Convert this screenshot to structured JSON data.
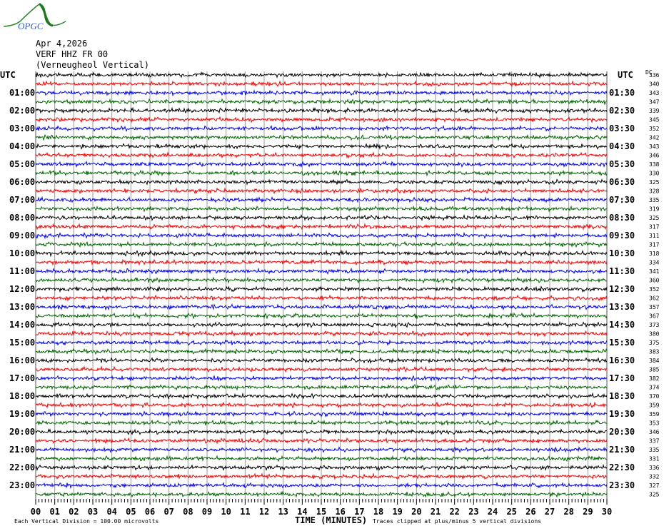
{
  "header": {
    "logo_text": "OPGC",
    "date": "Apr 4,2026",
    "station": "VERF HHZ FR 00",
    "station_name": "(Verneugheol Vertical)"
  },
  "chart_data": {
    "type": "line",
    "title": "",
    "left_axis_title": "UTC",
    "right_axis_title": "UTC",
    "dc_header": "DC",
    "left_labels": [
      "01:00",
      "02:00",
      "03:00",
      "04:00",
      "05:00",
      "06:00",
      "07:00",
      "08:00",
      "09:00",
      "10:00",
      "11:00",
      "12:00",
      "13:00",
      "14:00",
      "15:00",
      "16:00",
      "17:00",
      "18:00",
      "19:00",
      "20:00",
      "21:00",
      "22:00",
      "23:00"
    ],
    "right_labels": [
      "01:30",
      "02:30",
      "03:30",
      "04:30",
      "05:30",
      "06:30",
      "07:30",
      "08:30",
      "09:30",
      "10:30",
      "11:30",
      "12:30",
      "13:30",
      "14:30",
      "15:30",
      "16:30",
      "17:30",
      "18:30",
      "19:30",
      "20:30",
      "21:30",
      "22:30",
      "23:30"
    ],
    "dc_values": [
      "336",
      "340",
      "343",
      "347",
      "339",
      "345",
      "352",
      "342",
      "343",
      "346",
      "338",
      "330",
      "325",
      "328",
      "335",
      "319",
      "325",
      "317",
      "311",
      "317",
      "318",
      "334",
      "341",
      "360",
      "352",
      "362",
      "357",
      "367",
      "373",
      "380",
      "375",
      "383",
      "384",
      "385",
      "382",
      "374",
      "370",
      "359",
      "359",
      "353",
      "346",
      "337",
      "335",
      "331",
      "336",
      "332",
      "327",
      "325"
    ],
    "trace_count": 48,
    "minutes_per_trace": 30,
    "trace_colors": [
      "#000000",
      "#ff0000",
      "#0000ff",
      "#006600"
    ],
    "x_ticks": [
      "00",
      "01",
      "02",
      "03",
      "04",
      "05",
      "06",
      "07",
      "08",
      "09",
      "10",
      "11",
      "12",
      "13",
      "14",
      "15",
      "16",
      "17",
      "18",
      "19",
      "20",
      "21",
      "22",
      "23",
      "24",
      "25",
      "26",
      "27",
      "28",
      "29",
      "30"
    ],
    "xlabel": "TIME (MINUTES)",
    "xlim": [
      0,
      30
    ],
    "grid": true,
    "scale_note": "Each Vertical Division =  100.00 microvolts",
    "clip_note": "Traces clipped at plus/minus 5 vertical divisions"
  }
}
